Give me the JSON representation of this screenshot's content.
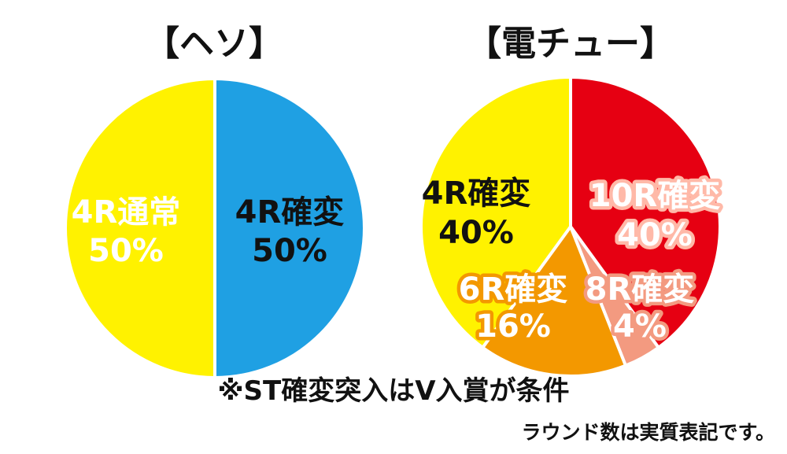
{
  "chart_data": [
    {
      "type": "pie",
      "title": "【ヘソ】",
      "slices": [
        {
          "label": "4R通常",
          "value": 50,
          "value_text": "50%",
          "color": "#1fa0e3",
          "text_color": "#ffffff"
        },
        {
          "label": "4R確変",
          "value": 50,
          "value_text": "50%",
          "color": "#fff200",
          "text_color": "#111111"
        }
      ]
    },
    {
      "type": "pie",
      "title": "【電チュー】",
      "slices": [
        {
          "label": "10R確変",
          "value": 40,
          "value_text": "40%",
          "color": "#e60012",
          "text_color": "#ffffff",
          "outline_color": "#ffb9a8"
        },
        {
          "label": "8R確変",
          "value": 4,
          "value_text": "4%",
          "color": "#f39a80",
          "text_color": "#ffffff",
          "outline_color": "#f39a80"
        },
        {
          "label": "6R確変",
          "value": 16,
          "value_text": "16%",
          "color": "#f39800",
          "text_color": "#ffffff",
          "outline_color": "#f39800"
        },
        {
          "label": "4R確変",
          "value": 40,
          "value_text": "40%",
          "color": "#fff200",
          "text_color": "#111111"
        }
      ]
    }
  ],
  "notes": {
    "st_condition": "※ST確変突入はV入賞が条件",
    "round_note": "ラウンド数は実質表記です。"
  }
}
